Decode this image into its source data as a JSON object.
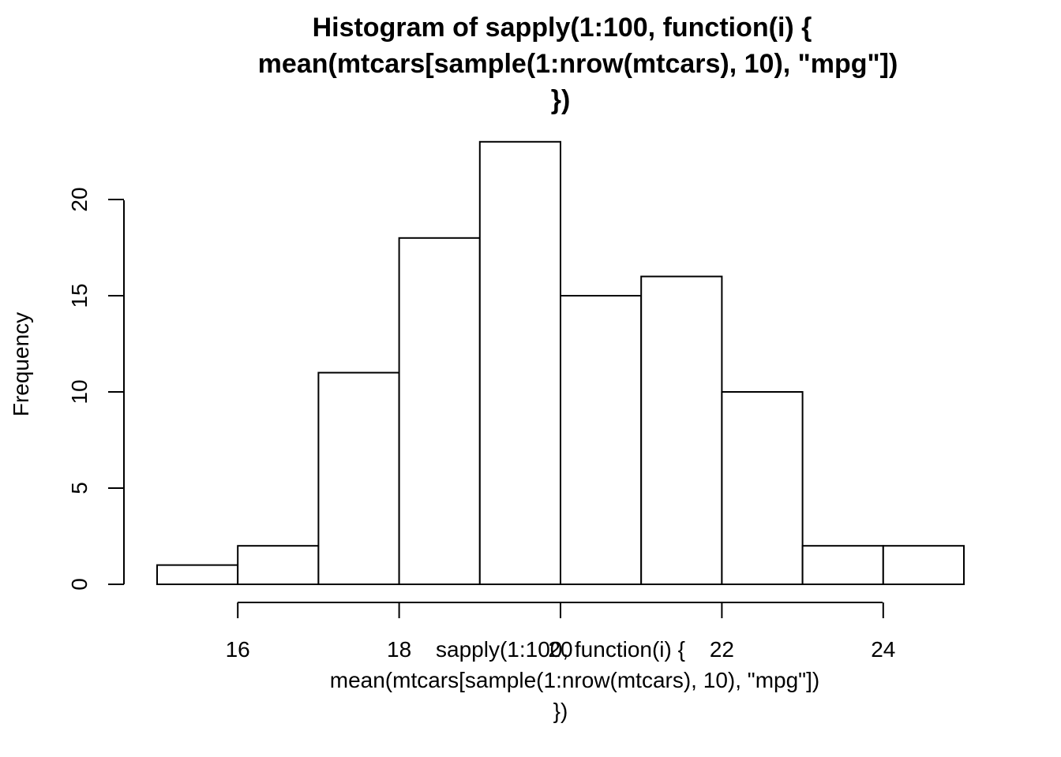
{
  "chart_data": {
    "type": "bar",
    "subtype": "histogram",
    "title_lines": [
      "Histogram of sapply(1:100, function(i) {",
      "mean(mtcars[sample(1:nrow(mtcars), 10), \"mpg\"])",
      "})"
    ],
    "xlabel_lines": [
      "sapply(1:100, function(i) {",
      "mean(mtcars[sample(1:nrow(mtcars), 10), \"mpg\"])",
      "})"
    ],
    "ylabel": "Frequency",
    "bins": [
      {
        "from": 15,
        "to": 16,
        "count": 1
      },
      {
        "from": 16,
        "to": 17,
        "count": 2
      },
      {
        "from": 17,
        "to": 18,
        "count": 11
      },
      {
        "from": 18,
        "to": 19,
        "count": 18
      },
      {
        "from": 19,
        "to": 20,
        "count": 23
      },
      {
        "from": 20,
        "to": 21,
        "count": 15
      },
      {
        "from": 21,
        "to": 22,
        "count": 16
      },
      {
        "from": 22,
        "to": 23,
        "count": 10
      },
      {
        "from": 23,
        "to": 24,
        "count": 2
      },
      {
        "from": 24,
        "to": 25,
        "count": 2
      }
    ],
    "x_ticks": [
      16,
      18,
      20,
      22,
      24
    ],
    "x_tick_labels": [
      "16",
      "18",
      "20",
      "22",
      "24"
    ],
    "y_ticks": [
      0,
      5,
      10,
      15,
      20
    ],
    "y_tick_labels": [
      "0",
      "5",
      "10",
      "15",
      "20"
    ],
    "xlim": [
      15,
      25
    ],
    "ylim": [
      0,
      23
    ],
    "grid": false,
    "legend": "none",
    "bar_fill": "#ffffff",
    "bar_stroke": "#000000"
  }
}
